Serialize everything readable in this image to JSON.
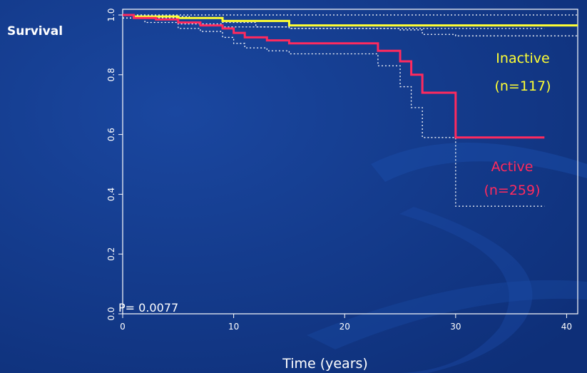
{
  "chart_data": {
    "type": "line",
    "subtype": "kaplan-meier",
    "ylabel": "Survival",
    "xlabel": "Time (years)",
    "xlim": [
      0,
      41
    ],
    "ylim": [
      0,
      1
    ],
    "x_ticks": [
      0,
      10,
      20,
      30,
      40
    ],
    "y_ticks": [
      0.0,
      0.2,
      0.4,
      0.6,
      0.8,
      1.0
    ],
    "y_tick_labels": [
      "0.0",
      "0.2",
      "0.4",
      "0.6",
      "0.8",
      "1.0"
    ],
    "pvalue_text": "P= 0.0077",
    "grid": false,
    "series": [
      {
        "name": "Inactive",
        "n_label": "(n=117)",
        "color": "#ffff33",
        "x": [
          0,
          1,
          5,
          9,
          15,
          41
        ],
        "y": [
          1.0,
          0.995,
          0.99,
          0.98,
          0.965,
          0.965
        ],
        "ci_upper": {
          "x": [
            0,
            5,
            9,
            41
          ],
          "y": [
            1.0,
            1.0,
            1.0,
            1.0
          ]
        },
        "ci_lower": {
          "x": [
            0,
            5,
            9,
            15,
            25,
            27,
            30,
            41
          ],
          "y": [
            0.99,
            0.97,
            0.96,
            0.955,
            0.95,
            0.935,
            0.93,
            0.93
          ]
        }
      },
      {
        "name": "Active",
        "n_label": "(n=259)",
        "color": "#ff2a5e",
        "x": [
          0,
          1,
          3,
          5,
          7,
          9,
          10,
          11,
          13,
          15,
          23,
          25,
          26,
          27,
          30,
          38
        ],
        "y": [
          1.0,
          0.99,
          0.985,
          0.975,
          0.965,
          0.955,
          0.94,
          0.925,
          0.915,
          0.905,
          0.88,
          0.845,
          0.8,
          0.74,
          0.59,
          0.59
        ],
        "ci_upper": {
          "x": [
            0,
            2,
            6,
            9,
            12,
            15,
            38
          ],
          "y": [
            1.0,
            0.995,
            0.99,
            0.975,
            0.96,
            0.955,
            0.955
          ]
        },
        "ci_lower": {
          "x": [
            0,
            2,
            5,
            7,
            9,
            10,
            11,
            13,
            15,
            23,
            25,
            26,
            27,
            30,
            38
          ],
          "y": [
            0.99,
            0.975,
            0.955,
            0.945,
            0.925,
            0.905,
            0.89,
            0.88,
            0.87,
            0.83,
            0.76,
            0.69,
            0.59,
            0.36,
            0.36
          ]
        }
      }
    ]
  }
}
